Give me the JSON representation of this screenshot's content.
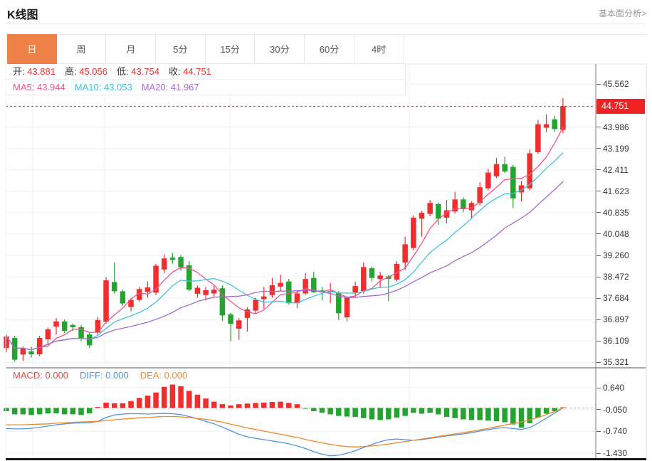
{
  "header": {
    "title": "K线图",
    "link_label": "基本面分析>"
  },
  "tabs": {
    "items": [
      "日",
      "周",
      "月",
      "5分",
      "15分",
      "30分",
      "60分",
      "4时"
    ],
    "active": "日"
  },
  "info": {
    "ohlc": [
      {
        "label": "开:",
        "value": "43.881"
      },
      {
        "label": "高:",
        "value": "45.056"
      },
      {
        "label": "低:",
        "value": "43.754"
      },
      {
        "label": "收:",
        "value": "44.751"
      }
    ],
    "ma": [
      {
        "label": "MA5:",
        "value": "43.944",
        "color": "#f0558c"
      },
      {
        "label": "MA10:",
        "value": "43.053",
        "color": "#44c2de"
      },
      {
        "label": "MA20:",
        "value": "41.967",
        "color": "#a46ad0"
      }
    ]
  },
  "macd_info": [
    {
      "label": "MACD:",
      "value": "0.000",
      "color": "#ef4444"
    },
    {
      "label": "DIFF:",
      "value": "0.000",
      "color": "#4f94e0"
    },
    {
      "label": "DEA:",
      "value": "0.000",
      "color": "#f0882e"
    }
  ],
  "axes": {
    "main_ticks": [
      "45.562",
      "43.986",
      "43.199",
      "42.411",
      "41.623",
      "40.835",
      "40.048",
      "39.260",
      "38.472",
      "37.684",
      "36.897",
      "36.109",
      "35.321"
    ],
    "current_price": "44.751",
    "macd_ticks": [
      "0.640",
      "-0.050",
      "-0.740",
      "-1.430"
    ]
  },
  "chart_data": {
    "type": "candlestick+macd",
    "price_axis": {
      "min": 35.321,
      "max": 45.562
    },
    "current_price": 44.751,
    "ohlc_last": {
      "open": 43.881,
      "high": 45.056,
      "low": 43.754,
      "close": 44.751
    },
    "ma_periods": [
      5,
      10,
      20
    ],
    "ma_last": {
      "ma5": 43.944,
      "ma10": 43.053,
      "ma20": 41.967
    },
    "candles": [
      [
        35.85,
        36.35,
        35.7,
        36.28
      ],
      [
        36.22,
        36.3,
        35.35,
        35.42
      ],
      [
        35.61,
        35.9,
        35.38,
        35.83
      ],
      [
        35.73,
        35.9,
        35.5,
        35.62
      ],
      [
        35.62,
        36.3,
        35.55,
        36.22
      ],
      [
        36.17,
        36.6,
        36.0,
        36.54
      ],
      [
        36.64,
        36.95,
        36.35,
        36.83
      ],
      [
        36.83,
        36.9,
        36.4,
        36.48
      ],
      [
        36.7,
        36.75,
        36.48,
        36.62
      ],
      [
        36.62,
        36.7,
        36.1,
        36.22
      ],
      [
        36.35,
        36.45,
        35.85,
        35.95
      ],
      [
        36.42,
        37.0,
        36.35,
        36.88
      ],
      [
        36.82,
        38.45,
        36.75,
        38.34
      ],
      [
        38.28,
        39.0,
        37.85,
        37.94
      ],
      [
        37.94,
        38.0,
        37.4,
        37.49
      ],
      [
        37.36,
        37.7,
        37.2,
        37.62
      ],
      [
        37.62,
        38.1,
        37.55,
        38.02
      ],
      [
        37.92,
        38.3,
        37.7,
        38.08
      ],
      [
        37.89,
        38.95,
        37.8,
        38.88
      ],
      [
        38.74,
        39.3,
        38.6,
        39.15
      ],
      [
        39.18,
        39.35,
        38.95,
        39.1
      ],
      [
        39.2,
        39.28,
        38.7,
        38.82
      ],
      [
        38.9,
        39.05,
        37.95,
        38.0
      ],
      [
        37.85,
        38.15,
        37.7,
        38.07
      ],
      [
        37.8,
        38.1,
        37.6,
        37.98
      ],
      [
        37.86,
        38.15,
        37.75,
        38.0
      ],
      [
        38.05,
        38.15,
        36.85,
        37.05
      ],
      [
        37.09,
        37.15,
        36.1,
        36.74
      ],
      [
        36.56,
        36.95,
        36.15,
        36.87
      ],
      [
        36.96,
        37.35,
        36.45,
        37.27
      ],
      [
        37.23,
        37.7,
        37.1,
        37.63
      ],
      [
        37.65,
        38.1,
        37.3,
        37.75
      ],
      [
        37.8,
        38.43,
        37.7,
        38.16
      ],
      [
        38.11,
        38.55,
        37.95,
        38.25
      ],
      [
        38.3,
        38.4,
        37.45,
        37.5
      ],
      [
        37.5,
        37.95,
        37.32,
        37.86
      ],
      [
        37.86,
        38.62,
        37.8,
        38.39
      ],
      [
        38.43,
        38.66,
        37.89,
        37.9
      ],
      [
        37.97,
        38.1,
        37.6,
        37.92
      ],
      [
        37.9,
        38.25,
        37.5,
        37.95
      ],
      [
        37.89,
        37.95,
        36.88,
        37.13
      ],
      [
        36.98,
        37.75,
        36.83,
        37.7
      ],
      [
        37.9,
        38.3,
        37.7,
        38.13
      ],
      [
        37.95,
        39.0,
        37.85,
        38.83
      ],
      [
        38.79,
        38.85,
        38.3,
        38.43
      ],
      [
        38.39,
        38.65,
        38.05,
        38.52
      ],
      [
        38.49,
        38.55,
        37.58,
        38.4
      ],
      [
        38.37,
        39.05,
        38.3,
        38.95
      ],
      [
        39.0,
        39.95,
        38.73,
        39.67
      ],
      [
        39.53,
        40.74,
        39.45,
        40.65
      ],
      [
        40.61,
        40.9,
        39.95,
        40.83
      ],
      [
        40.79,
        41.3,
        40.7,
        41.19
      ],
      [
        41.15,
        41.2,
        40.39,
        40.61
      ],
      [
        40.65,
        41.3,
        40.45,
        40.92
      ],
      [
        40.88,
        41.6,
        40.8,
        41.32
      ],
      [
        41.32,
        41.4,
        40.85,
        40.96
      ],
      [
        40.92,
        41.25,
        40.6,
        41.19
      ],
      [
        41.19,
        41.95,
        41.1,
        41.77
      ],
      [
        41.73,
        42.45,
        41.65,
        42.31
      ],
      [
        42.17,
        42.85,
        42.1,
        42.62
      ],
      [
        42.62,
        42.9,
        42.3,
        42.35
      ],
      [
        42.52,
        42.6,
        41.0,
        41.36
      ],
      [
        41.58,
        42.0,
        41.25,
        41.84
      ],
      [
        41.73,
        43.15,
        41.65,
        43.02
      ],
      [
        43.06,
        44.25,
        43.0,
        44.09
      ],
      [
        43.96,
        44.45,
        43.8,
        44.09
      ],
      [
        44.27,
        44.4,
        43.8,
        43.91
      ],
      [
        43.881,
        45.056,
        43.754,
        44.751
      ]
    ],
    "macd": {
      "hist": [
        -0.1,
        -0.2,
        -0.2,
        -0.22,
        -0.2,
        -0.17,
        -0.17,
        -0.2,
        -0.2,
        -0.22,
        -0.17,
        0.03,
        0.17,
        0.15,
        0.15,
        0.22,
        0.32,
        0.39,
        0.49,
        0.67,
        0.74,
        0.69,
        0.54,
        0.42,
        0.3,
        0.2,
        0.12,
        0.08,
        0.12,
        0.14,
        0.16,
        0.17,
        0.19,
        0.2,
        0.16,
        0.12,
        -0.02,
        -0.1,
        -0.15,
        -0.2,
        -0.25,
        -0.27,
        -0.28,
        -0.32,
        -0.36,
        -0.38,
        -0.36,
        -0.3,
        -0.25,
        -0.15,
        -0.18,
        -0.15,
        -0.2,
        -0.28,
        -0.32,
        -0.36,
        -0.38,
        -0.38,
        -0.4,
        -0.42,
        -0.45,
        -0.52,
        -0.62,
        -0.48,
        -0.3,
        -0.18,
        -0.1,
        0.0
      ],
      "diff": [
        -0.65,
        -0.66,
        -0.66,
        -0.64,
        -0.61,
        -0.57,
        -0.53,
        -0.5,
        -0.48,
        -0.47,
        -0.47,
        -0.42,
        -0.3,
        -0.22,
        -0.19,
        -0.18,
        -0.18,
        -0.19,
        -0.18,
        -0.17,
        -0.18,
        -0.21,
        -0.27,
        -0.34,
        -0.42,
        -0.5,
        -0.6,
        -0.72,
        -0.83,
        -0.91,
        -0.96,
        -1.0,
        -1.04,
        -1.08,
        -1.13,
        -1.2,
        -1.28,
        -1.38,
        -1.46,
        -1.51,
        -1.49,
        -1.43,
        -1.35,
        -1.25,
        -1.15,
        -1.06,
        -1.0,
        -0.98,
        -1.0,
        -1.02,
        -1.0,
        -0.96,
        -0.92,
        -0.88,
        -0.85,
        -0.82,
        -0.78,
        -0.73,
        -0.68,
        -0.64,
        -0.62,
        -0.65,
        -0.68,
        -0.62,
        -0.48,
        -0.32,
        -0.16,
        0.0
      ],
      "dea": [
        -0.53,
        -0.53,
        -0.53,
        -0.52,
        -0.51,
        -0.5,
        -0.48,
        -0.47,
        -0.45,
        -0.44,
        -0.43,
        -0.42,
        -0.4,
        -0.37,
        -0.35,
        -0.33,
        -0.31,
        -0.3,
        -0.28,
        -0.27,
        -0.27,
        -0.28,
        -0.3,
        -0.33,
        -0.36,
        -0.4,
        -0.45,
        -0.51,
        -0.57,
        -0.63,
        -0.68,
        -0.73,
        -0.78,
        -0.83,
        -0.88,
        -0.93,
        -0.99,
        -1.05,
        -1.1,
        -1.15,
        -1.19,
        -1.22,
        -1.23,
        -1.22,
        -1.2,
        -1.17,
        -1.14,
        -1.1,
        -1.06,
        -1.02,
        -0.98,
        -0.94,
        -0.9,
        -0.86,
        -0.82,
        -0.78,
        -0.74,
        -0.69,
        -0.64,
        -0.59,
        -0.54,
        -0.49,
        -0.44,
        -0.38,
        -0.3,
        -0.21,
        -0.11,
        0.0
      ]
    },
    "macd_axis": {
      "min": -1.43,
      "max": 0.64
    },
    "colors": {
      "up": "#ef2e2e",
      "down": "#23a42f",
      "ma5": "#f0558c",
      "ma10": "#44c2de",
      "ma20": "#a46ad0",
      "diff": "#4f94e0",
      "dea": "#f0882e",
      "zero_dash": "#72cede",
      "price_line": "#ee2424",
      "grid": "#f0f0f0",
      "axis": "#777",
      "tab_active": "#ee8147"
    },
    "grid": {
      "vertical_x": [
        46,
        147,
        323,
        575
      ]
    }
  }
}
